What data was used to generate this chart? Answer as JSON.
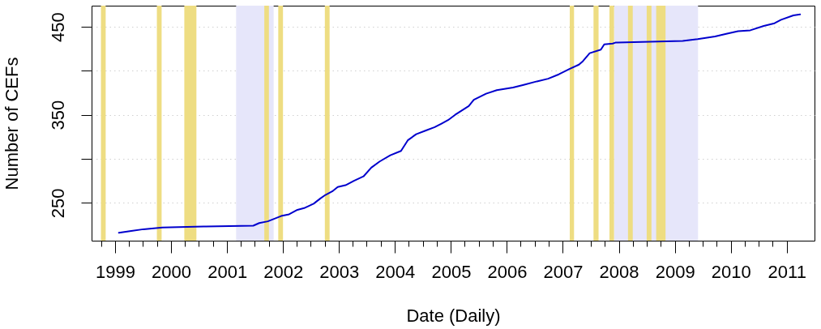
{
  "chart_data": {
    "type": "line",
    "xlabel": "Date (Daily)",
    "ylabel": "Number of CEFs",
    "x": [
      "1999-01-26",
      "1999-04-17",
      "1999-07-05",
      "1999-11-06",
      "2000-08-01",
      "2001-06-21",
      "2001-07-30",
      "2001-09-24",
      "2001-12-20",
      "2002-02-10",
      "2002-04-05",
      "2002-05-19",
      "2002-07-20",
      "2002-09-02",
      "2002-10-05",
      "2002-11-18",
      "2002-12-24",
      "2003-02-13",
      "2003-04-09",
      "2003-06-10",
      "2003-07-31",
      "2003-09-24",
      "2003-12-02",
      "2004-02-10",
      "2004-03-25",
      "2004-05-19",
      "2004-07-18",
      "2004-09-17",
      "2004-10-31",
      "2004-12-13",
      "2005-01-28",
      "2005-04-27",
      "2005-05-30",
      "2005-08-18",
      "2005-10-27",
      "2006-02-10",
      "2006-04-20",
      "2006-07-16",
      "2006-09-27",
      "2006-12-06",
      "2007-02-13",
      "2007-04-16",
      "2007-05-12",
      "2007-06-25",
      "2007-09-06",
      "2007-09-28",
      "2007-11-22",
      "2007-12-10",
      "2009-02-21",
      "2009-05-30",
      "2009-09-20",
      "2009-12-02",
      "2010-02-17",
      "2010-05-08",
      "2010-08-04",
      "2010-10-13",
      "2010-11-25",
      "2011-02-13",
      "2011-03-29"
    ],
    "series": [
      {
        "color": "#0000cd",
        "values": [
          216,
          218,
          220,
          222,
          223,
          224,
          227,
          229,
          235,
          237,
          242,
          244,
          249,
          255,
          259,
          263,
          268,
          270,
          275,
          280,
          290,
          297,
          304,
          309,
          321,
          328,
          332,
          336,
          340,
          344,
          350,
          360,
          367,
          374,
          378,
          381,
          384,
          388,
          391,
          396,
          402,
          407,
          411,
          420,
          424,
          430,
          431,
          432,
          434,
          436,
          439,
          442,
          445,
          446,
          451,
          454,
          458,
          463,
          464
        ]
      }
    ],
    "xlim": [
      "1998-08",
      "2011-07"
    ],
    "ylim": [
      207,
      474
    ],
    "xticks": [
      {
        "value": "1998-10",
        "label": null
      },
      {
        "value": "1999-01",
        "label": "1999"
      },
      {
        "value": "1999-04",
        "label": null
      },
      {
        "value": "1999-07",
        "label": null
      },
      {
        "value": "1999-10",
        "label": null
      },
      {
        "value": "2000-01",
        "label": "2000"
      },
      {
        "value": "2000-04",
        "label": null
      },
      {
        "value": "2000-07",
        "label": null
      },
      {
        "value": "2000-10",
        "label": null
      },
      {
        "value": "2001-01",
        "label": "2001"
      },
      {
        "value": "2001-04",
        "label": null
      },
      {
        "value": "2001-07",
        "label": null
      },
      {
        "value": "2001-10",
        "label": null
      },
      {
        "value": "2002-01",
        "label": "2002"
      },
      {
        "value": "2002-04",
        "label": null
      },
      {
        "value": "2002-07",
        "label": null
      },
      {
        "value": "2002-10",
        "label": null
      },
      {
        "value": "2003-01",
        "label": "2003"
      },
      {
        "value": "2003-04",
        "label": null
      },
      {
        "value": "2003-07",
        "label": null
      },
      {
        "value": "2003-10",
        "label": null
      },
      {
        "value": "2004-01",
        "label": "2004"
      },
      {
        "value": "2004-04",
        "label": null
      },
      {
        "value": "2004-07",
        "label": null
      },
      {
        "value": "2004-10",
        "label": null
      },
      {
        "value": "2005-01",
        "label": "2005"
      },
      {
        "value": "2005-04",
        "label": null
      },
      {
        "value": "2005-07",
        "label": null
      },
      {
        "value": "2005-10",
        "label": null
      },
      {
        "value": "2006-01",
        "label": "2006"
      },
      {
        "value": "2006-04",
        "label": null
      },
      {
        "value": "2006-07",
        "label": null
      },
      {
        "value": "2006-10",
        "label": null
      },
      {
        "value": "2007-01",
        "label": "2007"
      },
      {
        "value": "2007-04",
        "label": null
      },
      {
        "value": "2007-07",
        "label": null
      },
      {
        "value": "2007-10",
        "label": null
      },
      {
        "value": "2008-01",
        "label": "2008"
      },
      {
        "value": "2008-04",
        "label": null
      },
      {
        "value": "2008-07",
        "label": null
      },
      {
        "value": "2008-10",
        "label": null
      },
      {
        "value": "2009-01",
        "label": "2009"
      },
      {
        "value": "2009-04",
        "label": null
      },
      {
        "value": "2009-07",
        "label": null
      },
      {
        "value": "2009-10",
        "label": null
      },
      {
        "value": "2010-01",
        "label": "2010"
      },
      {
        "value": "2010-04",
        "label": null
      },
      {
        "value": "2010-07",
        "label": null
      },
      {
        "value": "2010-10",
        "label": null
      },
      {
        "value": "2011-01",
        "label": "2011"
      }
    ],
    "yticks": [
      250,
      {
        "value": 300,
        "label": null
      },
      350,
      {
        "value": 400,
        "label": null
      },
      450
    ],
    "grid": "y",
    "bands": [
      {
        "axis": "x",
        "from": "2001-03-01",
        "to": "2001-11-01",
        "color": "#e6e6fa"
      },
      {
        "axis": "x",
        "from": "2007-12-01",
        "to": "2009-06-01",
        "color": "#e6e6fa"
      },
      {
        "axis": "x",
        "from": "1998-10-01",
        "to": "1998-11-01",
        "color": "#eedd82"
      },
      {
        "axis": "x",
        "from": "1999-10-01",
        "to": "1999-11-01",
        "color": "#eedd82"
      },
      {
        "axis": "x",
        "from": "2000-03-28",
        "to": "2000-06-15",
        "color": "#eedd82"
      },
      {
        "axis": "x",
        "from": "2001-09-01",
        "to": "2001-10-01",
        "color": "#eedd82"
      },
      {
        "axis": "x",
        "from": "2001-12-01",
        "to": "2002-01-01",
        "color": "#eedd82"
      },
      {
        "axis": "x",
        "from": "2002-10-01",
        "to": "2002-11-01",
        "color": "#eedd82"
      },
      {
        "axis": "x",
        "from": "2007-02-15",
        "to": "2007-03-15",
        "color": "#eedd82"
      },
      {
        "axis": "x",
        "from": "2007-07-20",
        "to": "2007-08-22",
        "color": "#eedd82"
      },
      {
        "axis": "x",
        "from": "2007-11-01",
        "to": "2007-12-01",
        "color": "#eedd82"
      },
      {
        "axis": "x",
        "from": "2008-03-01",
        "to": "2008-04-01",
        "color": "#eedd82"
      },
      {
        "axis": "x",
        "from": "2008-07-01",
        "to": "2008-08-01",
        "color": "#eedd82"
      },
      {
        "axis": "x",
        "from": "2008-09-01",
        "to": "2008-11-01",
        "color": "#eedd82"
      }
    ]
  }
}
